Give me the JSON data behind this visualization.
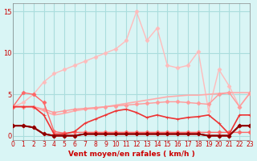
{
  "bg_color": "#d9f5f5",
  "grid_color": "#aadddd",
  "xlabel": "Vent moyen/en rafales ( km/h )",
  "xlabel_color": "#cc0000",
  "tick_color": "#cc0000",
  "xlim": [
    0,
    23
  ],
  "ylim": [
    -0.5,
    16
  ],
  "yticks": [
    0,
    5,
    10,
    15
  ],
  "xticks": [
    0,
    1,
    2,
    3,
    4,
    5,
    6,
    7,
    8,
    9,
    10,
    11,
    12,
    13,
    14,
    15,
    16,
    17,
    18,
    19,
    20,
    21,
    22,
    23
  ],
  "series": [
    {
      "x": [
        0,
        1,
        2,
        3,
        4,
        5,
        6,
        7,
        8,
        9,
        10,
        11,
        12,
        13,
        14,
        15,
        16,
        17,
        18,
        19,
        20,
        21,
        22,
        23
      ],
      "y": [
        3.5,
        4.0,
        5.0,
        6.5,
        7.5,
        8.0,
        8.5,
        9.0,
        9.5,
        10.0,
        10.5,
        11.5,
        15.0,
        11.5,
        13.0,
        8.5,
        8.2,
        8.5,
        10.2,
        3.0,
        8.0,
        6.0,
        3.5,
        5.2
      ],
      "color": "#ffbbbb",
      "lw": 1.0,
      "marker": "D",
      "ms": 2.5,
      "zorder": 2
    },
    {
      "x": [
        0,
        1,
        2,
        3,
        4,
        5,
        6,
        7,
        8,
        9,
        10,
        11,
        12,
        13,
        14,
        15,
        16,
        17,
        18,
        19,
        20,
        21,
        22,
        23
      ],
      "y": [
        3.5,
        3.5,
        3.5,
        3.0,
        2.5,
        2.7,
        3.0,
        3.2,
        3.3,
        3.5,
        3.7,
        3.9,
        4.1,
        4.3,
        4.5,
        4.7,
        4.8,
        4.9,
        4.9,
        5.0,
        5.1,
        5.2,
        5.2,
        5.2
      ],
      "color": "#ffaaaa",
      "lw": 1.2,
      "marker": null,
      "ms": 0,
      "zorder": 2
    },
    {
      "x": [
        0,
        1,
        2,
        3,
        4,
        5,
        6,
        7,
        8,
        9,
        10,
        11,
        12,
        13,
        14,
        15,
        16,
        17,
        18,
        19,
        20,
        21,
        22,
        23
      ],
      "y": [
        3.5,
        3.5,
        3.5,
        3.2,
        2.8,
        3.0,
        3.2,
        3.3,
        3.4,
        3.5,
        3.6,
        3.7,
        3.8,
        3.9,
        4.0,
        4.1,
        4.1,
        4.0,
        3.9,
        3.8,
        5.0,
        5.2,
        3.5,
        5.1
      ],
      "color": "#ff9999",
      "lw": 1.0,
      "marker": "D",
      "ms": 2.5,
      "zorder": 3
    },
    {
      "x": [
        0,
        1,
        2,
        3,
        4,
        5,
        6,
        7,
        8,
        9,
        10,
        11,
        12,
        13,
        14,
        15,
        16,
        17,
        18,
        19,
        20,
        21,
        22,
        23
      ],
      "y": [
        3.5,
        5.2,
        5.0,
        4.0,
        0.5,
        0.3,
        0.4,
        0.4,
        0.4,
        0.4,
        0.4,
        0.4,
        0.4,
        0.4,
        0.4,
        0.4,
        0.4,
        0.4,
        0.4,
        0.4,
        0.4,
        0.4,
        0.4,
        0.4
      ],
      "color": "#ff6666",
      "lw": 1.0,
      "marker": "D",
      "ms": 2.5,
      "zorder": 3
    },
    {
      "x": [
        0,
        1,
        2,
        3,
        4,
        5,
        6,
        7,
        8,
        9,
        10,
        11,
        12,
        13,
        14,
        15,
        16,
        17,
        18,
        19,
        20,
        21,
        22,
        23
      ],
      "y": [
        3.5,
        3.5,
        3.5,
        2.5,
        0.2,
        0.2,
        0.5,
        1.5,
        2.0,
        2.5,
        3.0,
        3.2,
        2.8,
        2.2,
        2.5,
        2.2,
        2.0,
        2.2,
        2.3,
        2.5,
        1.5,
        0.2,
        2.5,
        2.5
      ],
      "color": "#ee3333",
      "lw": 1.2,
      "marker": "+",
      "ms": 3.5,
      "zorder": 4
    },
    {
      "x": [
        0,
        1,
        2,
        3,
        4,
        5,
        6,
        7,
        8,
        9,
        10,
        11,
        12,
        13,
        14,
        15,
        16,
        17,
        18,
        19,
        20,
        21,
        22,
        23
      ],
      "y": [
        1.2,
        1.2,
        1.0,
        0.2,
        0.0,
        0.0,
        0.0,
        0.2,
        0.2,
        0.2,
        0.2,
        0.2,
        0.2,
        0.2,
        0.2,
        0.2,
        0.2,
        0.2,
        0.2,
        0.0,
        0.0,
        0.0,
        1.2,
        1.2
      ],
      "color": "#aa2222",
      "lw": 1.5,
      "marker": "D",
      "ms": 2.5,
      "zorder": 5
    },
    {
      "x": [
        0,
        1,
        2,
        3,
        4,
        5,
        6,
        7,
        8,
        9,
        10,
        11,
        12,
        13,
        14,
        15,
        16,
        17,
        18,
        19,
        20,
        21,
        22,
        23
      ],
      "y": [
        1.2,
        1.2,
        1.0,
        0.2,
        0.0,
        0.0,
        0.0,
        0.2,
        0.2,
        0.2,
        0.2,
        0.2,
        0.2,
        0.2,
        0.2,
        0.2,
        0.2,
        0.2,
        0.2,
        0.0,
        0.0,
        0.0,
        1.2,
        1.2
      ],
      "color": "#cc0000",
      "lw": 1.2,
      "marker": "D",
      "ms": 2.5,
      "zorder": 5
    },
    {
      "x": [
        0,
        1,
        2,
        3,
        4,
        5,
        6,
        7,
        8,
        9,
        10,
        11,
        12,
        13,
        14,
        15,
        16,
        17,
        18,
        19,
        20,
        21,
        22,
        23
      ],
      "y": [
        1.2,
        1.2,
        1.0,
        0.2,
        0.0,
        0.0,
        0.0,
        0.2,
        0.2,
        0.2,
        0.2,
        0.2,
        0.2,
        0.2,
        0.2,
        0.2,
        0.2,
        0.2,
        0.2,
        0.0,
        0.0,
        0.0,
        1.2,
        1.2
      ],
      "color": "#880000",
      "lw": 1.2,
      "marker": "D",
      "ms": 2.0,
      "zorder": 5
    }
  ]
}
